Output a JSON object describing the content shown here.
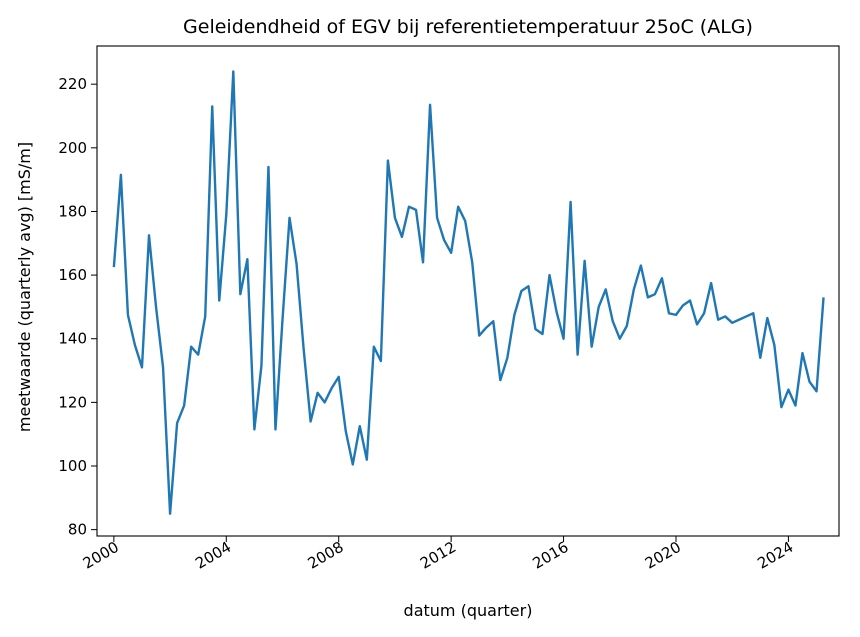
{
  "chart_data": {
    "type": "line",
    "title": "Geleidendheid of EGV bij referentietemperatuur 25oC (ALG)",
    "xlabel": "datum (quarter)",
    "ylabel": "meetwaarde (quarterly avg) [mS/m]",
    "xlim": [
      1999.4,
      2025.8
    ],
    "ylim": [
      78,
      232
    ],
    "x_ticks": [
      2000,
      2004,
      2008,
      2012,
      2016,
      2020,
      2024
    ],
    "x_tick_labels": [
      "2000",
      "2004",
      "2008",
      "2012",
      "2016",
      "2020",
      "2024"
    ],
    "y_ticks": [
      80,
      100,
      120,
      140,
      160,
      180,
      200,
      220
    ],
    "y_tick_labels": [
      "80",
      "100",
      "120",
      "140",
      "160",
      "180",
      "200",
      "220"
    ],
    "grid": false,
    "line_color": "#1f77b4",
    "series": [
      {
        "x": [
          2000.0,
          2000.25,
          2000.5,
          2000.75,
          2001.0,
          2001.25,
          2001.5,
          2001.75,
          2002.0,
          2002.25,
          2002.5,
          2002.75,
          2003.0,
          2003.25,
          2003.5,
          2003.75,
          2004.0,
          2004.25,
          2004.5,
          2004.75,
          2005.0,
          2005.25,
          2005.5,
          2005.75,
          2006.0,
          2006.25,
          2006.5,
          2006.75,
          2007.0,
          2007.25,
          2007.5,
          2007.75,
          2008.0,
          2008.25,
          2008.5,
          2008.75,
          2009.0,
          2009.25,
          2009.5,
          2009.75,
          2010.0,
          2010.25,
          2010.5,
          2010.75,
          2011.0,
          2011.25,
          2011.5,
          2011.75,
          2012.0,
          2012.25,
          2012.5,
          2012.75,
          2013.0,
          2013.25,
          2013.5,
          2013.75,
          2014.0,
          2014.25,
          2014.5,
          2014.75,
          2015.0,
          2015.25,
          2015.5,
          2015.75,
          2016.0,
          2016.25,
          2016.5,
          2016.75,
          2017.0,
          2017.25,
          2017.5,
          2017.75,
          2018.0,
          2018.25,
          2018.5,
          2018.75,
          2019.0,
          2019.25,
          2019.5,
          2019.75,
          2020.0,
          2020.25,
          2020.5,
          2020.75,
          2021.0,
          2021.25,
          2021.5,
          2021.75,
          2022.0,
          2022.25,
          2022.5,
          2022.75,
          2023.0,
          2023.25,
          2023.5,
          2023.75,
          2024.0,
          2024.25,
          2024.5,
          2024.75,
          2025.0,
          2025.25
        ],
        "y": [
          162.5,
          191.5,
          147.5,
          138,
          131,
          172.5,
          150,
          131,
          85,
          113.5,
          119,
          137.5,
          135,
          147,
          213,
          152,
          179,
          224,
          154,
          165,
          111.5,
          131.5,
          194,
          111.5,
          146,
          178,
          163.5,
          137,
          114,
          123,
          120,
          124.5,
          128,
          111,
          100.5,
          112.5,
          102,
          137.5,
          133,
          196,
          178,
          172,
          181.5,
          180.5,
          164,
          213.5,
          178,
          171,
          167,
          181.5,
          177,
          164,
          141,
          143.5,
          145.5,
          127,
          134,
          147.5,
          155,
          156.5,
          143,
          141.5,
          160,
          148.5,
          140,
          183,
          135,
          164.5,
          137.5,
          150,
          155.5,
          145.5,
          140,
          144,
          155.5,
          163,
          153,
          154,
          159,
          148,
          147.5,
          150.5,
          152,
          144.5,
          148,
          157.5,
          146,
          147,
          145,
          146,
          147,
          148,
          134,
          146.5,
          138,
          118.5,
          124,
          119,
          135.5,
          126.5,
          123.5,
          153
        ]
      }
    ]
  }
}
